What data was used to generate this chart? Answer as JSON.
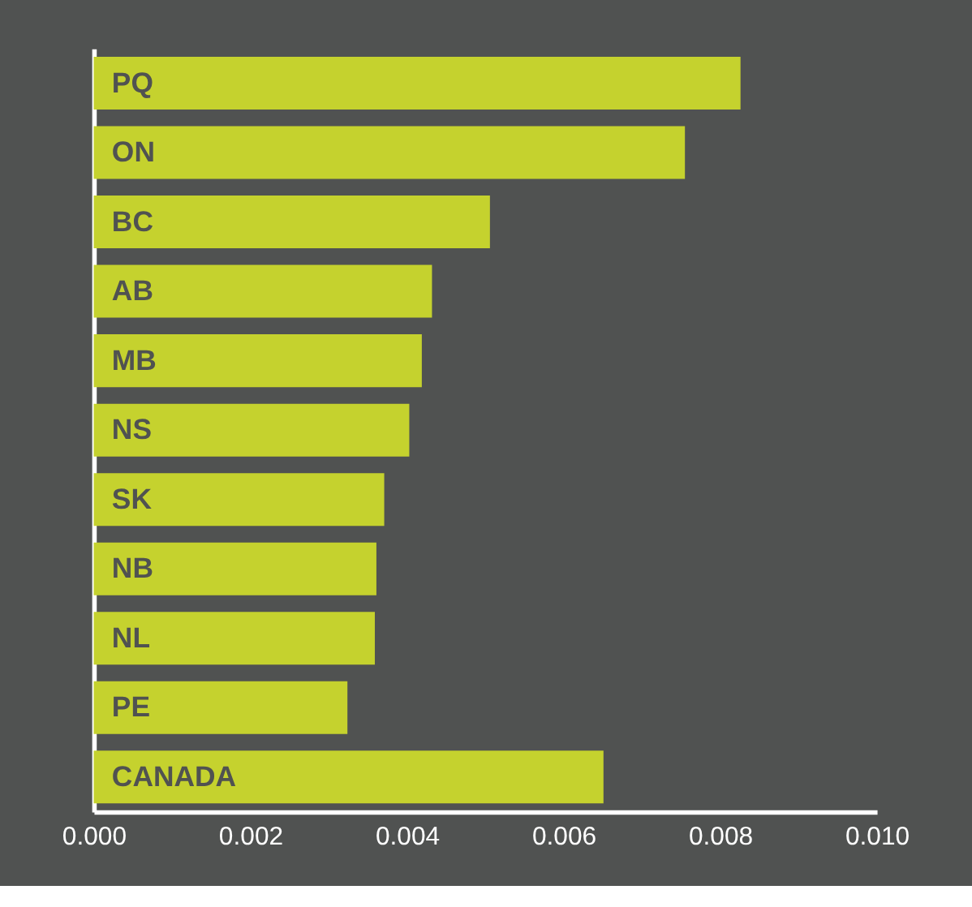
{
  "chart_data": {
    "type": "bar",
    "orientation": "horizontal",
    "categories": [
      "PQ",
      "ON",
      "BC",
      "AB",
      "MB",
      "NS",
      "SK",
      "NB",
      "NL",
      "PE",
      "CANADA"
    ],
    "values": [
      0.00826,
      0.00755,
      0.00506,
      0.00432,
      0.00419,
      0.00403,
      0.00371,
      0.00361,
      0.00359,
      0.00324,
      0.00651
    ],
    "color": "#c5d22e",
    "xlim": [
      0,
      0.01
    ],
    "xticks": [
      {
        "value": 0,
        "label": "0.000"
      },
      {
        "value": 0.002,
        "label": "0.002"
      },
      {
        "value": 0.004,
        "label": "0.004"
      },
      {
        "value": 0.006,
        "label": "0.006"
      },
      {
        "value": 0.008,
        "label": "0.008"
      },
      {
        "value": 0.01,
        "label": "0.010"
      }
    ],
    "grid": false
  }
}
